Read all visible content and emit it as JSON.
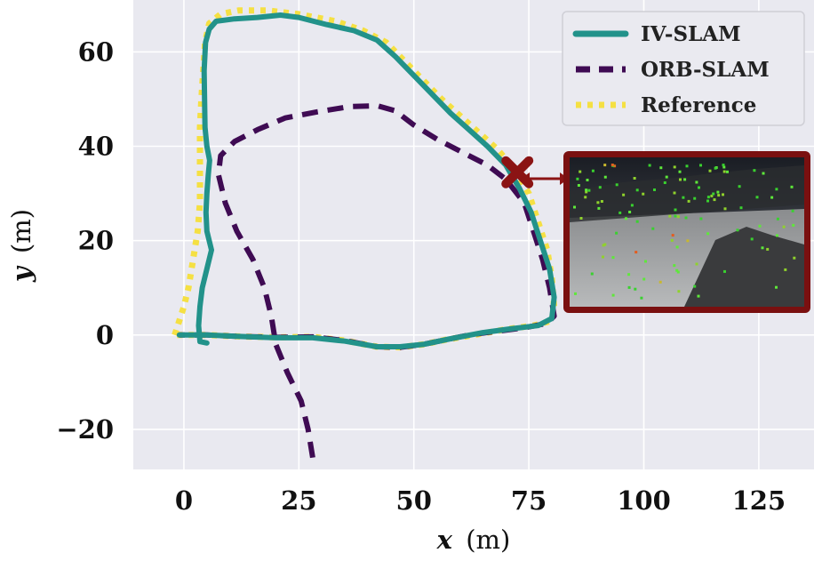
{
  "chart_data": {
    "type": "line",
    "xlabel": {
      "var": "x",
      "unit": "(m)"
    },
    "ylabel": {
      "var": "y",
      "unit": "(m)"
    },
    "xlim": [
      -11,
      137
    ],
    "ylim": [
      -28.5,
      71
    ],
    "xticks": [
      0,
      25,
      50,
      75,
      100,
      125
    ],
    "yticks": [
      -20,
      0,
      20,
      40,
      60
    ],
    "ytick_labels": [
      "−20",
      "0",
      "20",
      "40",
      "60"
    ],
    "grid": true,
    "legend_position": "top-right",
    "series": [
      {
        "name": "Reference",
        "color": "#f5e043",
        "style": "dotted",
        "points": [
          [
            -2,
            0
          ],
          [
            0,
            6
          ],
          [
            1,
            10
          ],
          [
            2,
            16
          ],
          [
            3,
            22
          ],
          [
            3.5,
            28
          ],
          [
            3.5,
            35
          ],
          [
            3.5,
            44
          ],
          [
            3.8,
            50
          ],
          [
            4.2,
            56
          ],
          [
            4.6,
            62
          ],
          [
            5.5,
            66
          ],
          [
            8,
            68
          ],
          [
            12,
            68.8
          ],
          [
            18,
            68.8
          ],
          [
            25,
            68
          ],
          [
            33,
            66.5
          ],
          [
            39,
            64.5
          ],
          [
            44,
            62
          ],
          [
            48,
            58
          ],
          [
            52,
            54
          ],
          [
            56,
            50
          ],
          [
            60,
            46.5
          ],
          [
            64,
            43
          ],
          [
            68,
            39.5
          ],
          [
            72,
            35
          ],
          [
            75,
            30
          ],
          [
            77,
            24
          ],
          [
            79,
            18
          ],
          [
            80,
            12
          ],
          [
            80.5,
            6
          ],
          [
            80,
            3
          ],
          [
            76,
            2
          ],
          [
            70,
            1.2
          ],
          [
            63,
            0
          ],
          [
            57,
            -1
          ],
          [
            52,
            -2
          ],
          [
            47,
            -2.6
          ],
          [
            42,
            -2.5
          ],
          [
            35,
            -1.2
          ],
          [
            28,
            -0.4
          ],
          [
            20,
            -0.5
          ],
          [
            12,
            -0.3
          ],
          [
            5,
            0
          ],
          [
            -2,
            0
          ]
        ]
      },
      {
        "name": "ORB-SLAM",
        "color": "#3f0b53",
        "style": "dashed",
        "points": [
          [
            28,
            -26
          ],
          [
            27,
            -20
          ],
          [
            25.5,
            -14
          ],
          [
            22.5,
            -8
          ],
          [
            20,
            -2
          ],
          [
            19,
            4
          ],
          [
            17.5,
            10
          ],
          [
            15,
            16
          ],
          [
            11.5,
            22
          ],
          [
            9,
            28
          ],
          [
            7.5,
            34
          ],
          [
            8,
            38
          ],
          [
            11,
            41
          ],
          [
            16,
            43.5
          ],
          [
            22,
            46
          ],
          [
            29,
            47.3
          ],
          [
            36,
            48.4
          ],
          [
            42,
            48.6
          ],
          [
            46,
            47.5
          ],
          [
            50,
            44.5
          ],
          [
            55,
            41.5
          ],
          [
            61,
            38.5
          ],
          [
            66,
            36
          ],
          [
            70,
            33
          ],
          [
            74,
            28
          ],
          [
            76,
            22
          ],
          [
            78,
            16
          ],
          [
            79.5,
            10
          ],
          [
            80.5,
            4
          ],
          [
            79,
            2.5
          ],
          [
            74,
            1.5
          ],
          [
            68,
            0.8
          ],
          [
            62,
            0
          ],
          [
            57,
            -1
          ],
          [
            52,
            -2
          ],
          [
            47,
            -2.6
          ],
          [
            42,
            -2.5
          ],
          [
            35,
            -1.2
          ],
          [
            28,
            -0.4
          ],
          [
            20,
            -0.5
          ],
          [
            12,
            -0.3
          ],
          [
            5,
            0
          ],
          [
            -1,
            0
          ]
        ]
      },
      {
        "name": "IV-SLAM",
        "color": "#22928a",
        "style": "solid",
        "points": [
          [
            5,
            -1.7
          ],
          [
            3.5,
            -1.4
          ],
          [
            3.2,
            2
          ],
          [
            3.5,
            6
          ],
          [
            4,
            10
          ],
          [
            5,
            14
          ],
          [
            6,
            18
          ],
          [
            5,
            22
          ],
          [
            4.8,
            26
          ],
          [
            5,
            30
          ],
          [
            5.3,
            34
          ],
          [
            5.6,
            37
          ],
          [
            5,
            40
          ],
          [
            4.6,
            44
          ],
          [
            4.5,
            50
          ],
          [
            4.4,
            56
          ],
          [
            4.7,
            62
          ],
          [
            5.5,
            64.8
          ],
          [
            7,
            66.5
          ],
          [
            11,
            67
          ],
          [
            16,
            67.3
          ],
          [
            21,
            67.8
          ],
          [
            25,
            67.3
          ],
          [
            31,
            65.8
          ],
          [
            37,
            64.5
          ],
          [
            42,
            62.5
          ],
          [
            46,
            59
          ],
          [
            50,
            55
          ],
          [
            54,
            51
          ],
          [
            58,
            47
          ],
          [
            62,
            43.5
          ],
          [
            66,
            40
          ],
          [
            70,
            36
          ],
          [
            73,
            31
          ],
          [
            75.5,
            26
          ],
          [
            77.5,
            20
          ],
          [
            79.5,
            14
          ],
          [
            80.5,
            8
          ],
          [
            80,
            3.5
          ],
          [
            77,
            2
          ],
          [
            71,
            1.3
          ],
          [
            65,
            0.5
          ],
          [
            58,
            -0.8
          ],
          [
            52,
            -2
          ],
          [
            47,
            -2.5
          ],
          [
            42,
            -2.5
          ],
          [
            35,
            -1.3
          ],
          [
            28,
            -0.6
          ],
          [
            20,
            -0.6
          ],
          [
            12,
            -0.3
          ],
          [
            5,
            0
          ],
          [
            -1,
            0
          ]
        ]
      }
    ],
    "annotation": {
      "marker": "x-cross",
      "marker_color": "#8b1414",
      "at": [
        72.5,
        34.5
      ],
      "inset_description": "camera frame with green feature points"
    }
  },
  "legend": {
    "entries": [
      "IV-SLAM",
      "ORB-SLAM",
      "Reference"
    ]
  }
}
